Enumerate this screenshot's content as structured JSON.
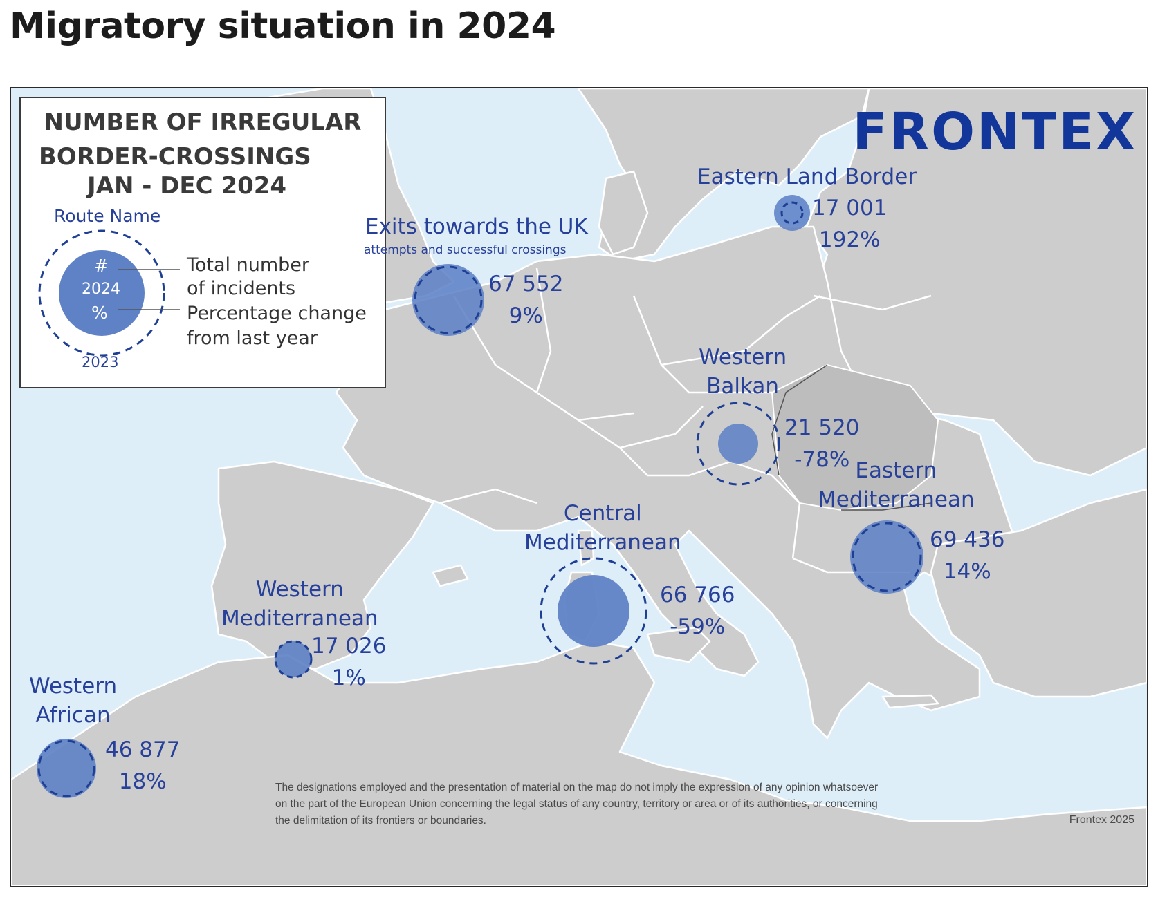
{
  "page": {
    "title": "Migratory situation in 2024"
  },
  "logo": {
    "text": "FRONTEX"
  },
  "legend": {
    "title_lines": [
      "NUMBER OF IRREGULAR",
      "BORDER-CROSSINGS",
      "JAN  -  DEC 2024"
    ],
    "route_name": "Route Name",
    "hash": "#",
    "year_current": "2024",
    "percent": "%",
    "year_previous": "2023",
    "total_label_line1": "Total number",
    "total_label_line2": "of incidents",
    "change_label_line1": "Percentage change",
    "change_label_line2": "from last year"
  },
  "routes": [
    {
      "id": "eastern-land-border",
      "name_lines": [
        "Eastern Land Border"
      ],
      "subtitle": "",
      "value": "17 001",
      "change": "192%",
      "value_2024": 17001,
      "value_2023": 5822
    },
    {
      "id": "exits-uk",
      "name_lines": [
        "Exits towards the UK"
      ],
      "subtitle": "attempts and successful crossings",
      "value": "67 552",
      "change": "9%",
      "value_2024": 67552,
      "value_2023": 61975
    },
    {
      "id": "western-balkan",
      "name_lines": [
        "Western",
        "Balkan"
      ],
      "subtitle": "",
      "value": "21 520",
      "change": "-78%",
      "value_2024": 21520,
      "value_2023": 97827
    },
    {
      "id": "eastern-mediterranean",
      "name_lines": [
        "Eastern",
        "Mediterranean"
      ],
      "subtitle": "",
      "value": "69 436",
      "change": "14%",
      "value_2024": 69436,
      "value_2023": 60908
    },
    {
      "id": "central-mediterranean",
      "name_lines": [
        "Central",
        "Mediterranean"
      ],
      "subtitle": "",
      "value": "66 766",
      "change": "-59%",
      "value_2024": 66766,
      "value_2023": 162836
    },
    {
      "id": "western-mediterranean",
      "name_lines": [
        "Western",
        "Mediterranean"
      ],
      "subtitle": "",
      "value": "17 026",
      "change": "1%",
      "value_2024": 17026,
      "value_2023": 16857
    },
    {
      "id": "western-african",
      "name_lines": [
        "Western",
        "African"
      ],
      "subtitle": "",
      "value": "46 877",
      "change": "18%",
      "value_2024": 46877,
      "value_2023": 39725
    }
  ],
  "colors": {
    "sea": "#deeef8",
    "land": "#cdcdcd",
    "land_dark": "#bdbdbd",
    "border": "#ffffff",
    "bubble": "#5f82c6",
    "dash": "#1e3f94",
    "route_text": "#27409a",
    "logo": "#13369a"
  },
  "disclaimer": {
    "line1": "The designations employed and the presentation of material on the map do not imply the expression of any opinion whatsoever",
    "line2": "on the part of the European Union concerning the legal status of any country, territory or area or of its authorities, or concerning",
    "line3": "the delimitation of its frontiers or boundaries."
  },
  "credit": "Frontex 2025"
}
